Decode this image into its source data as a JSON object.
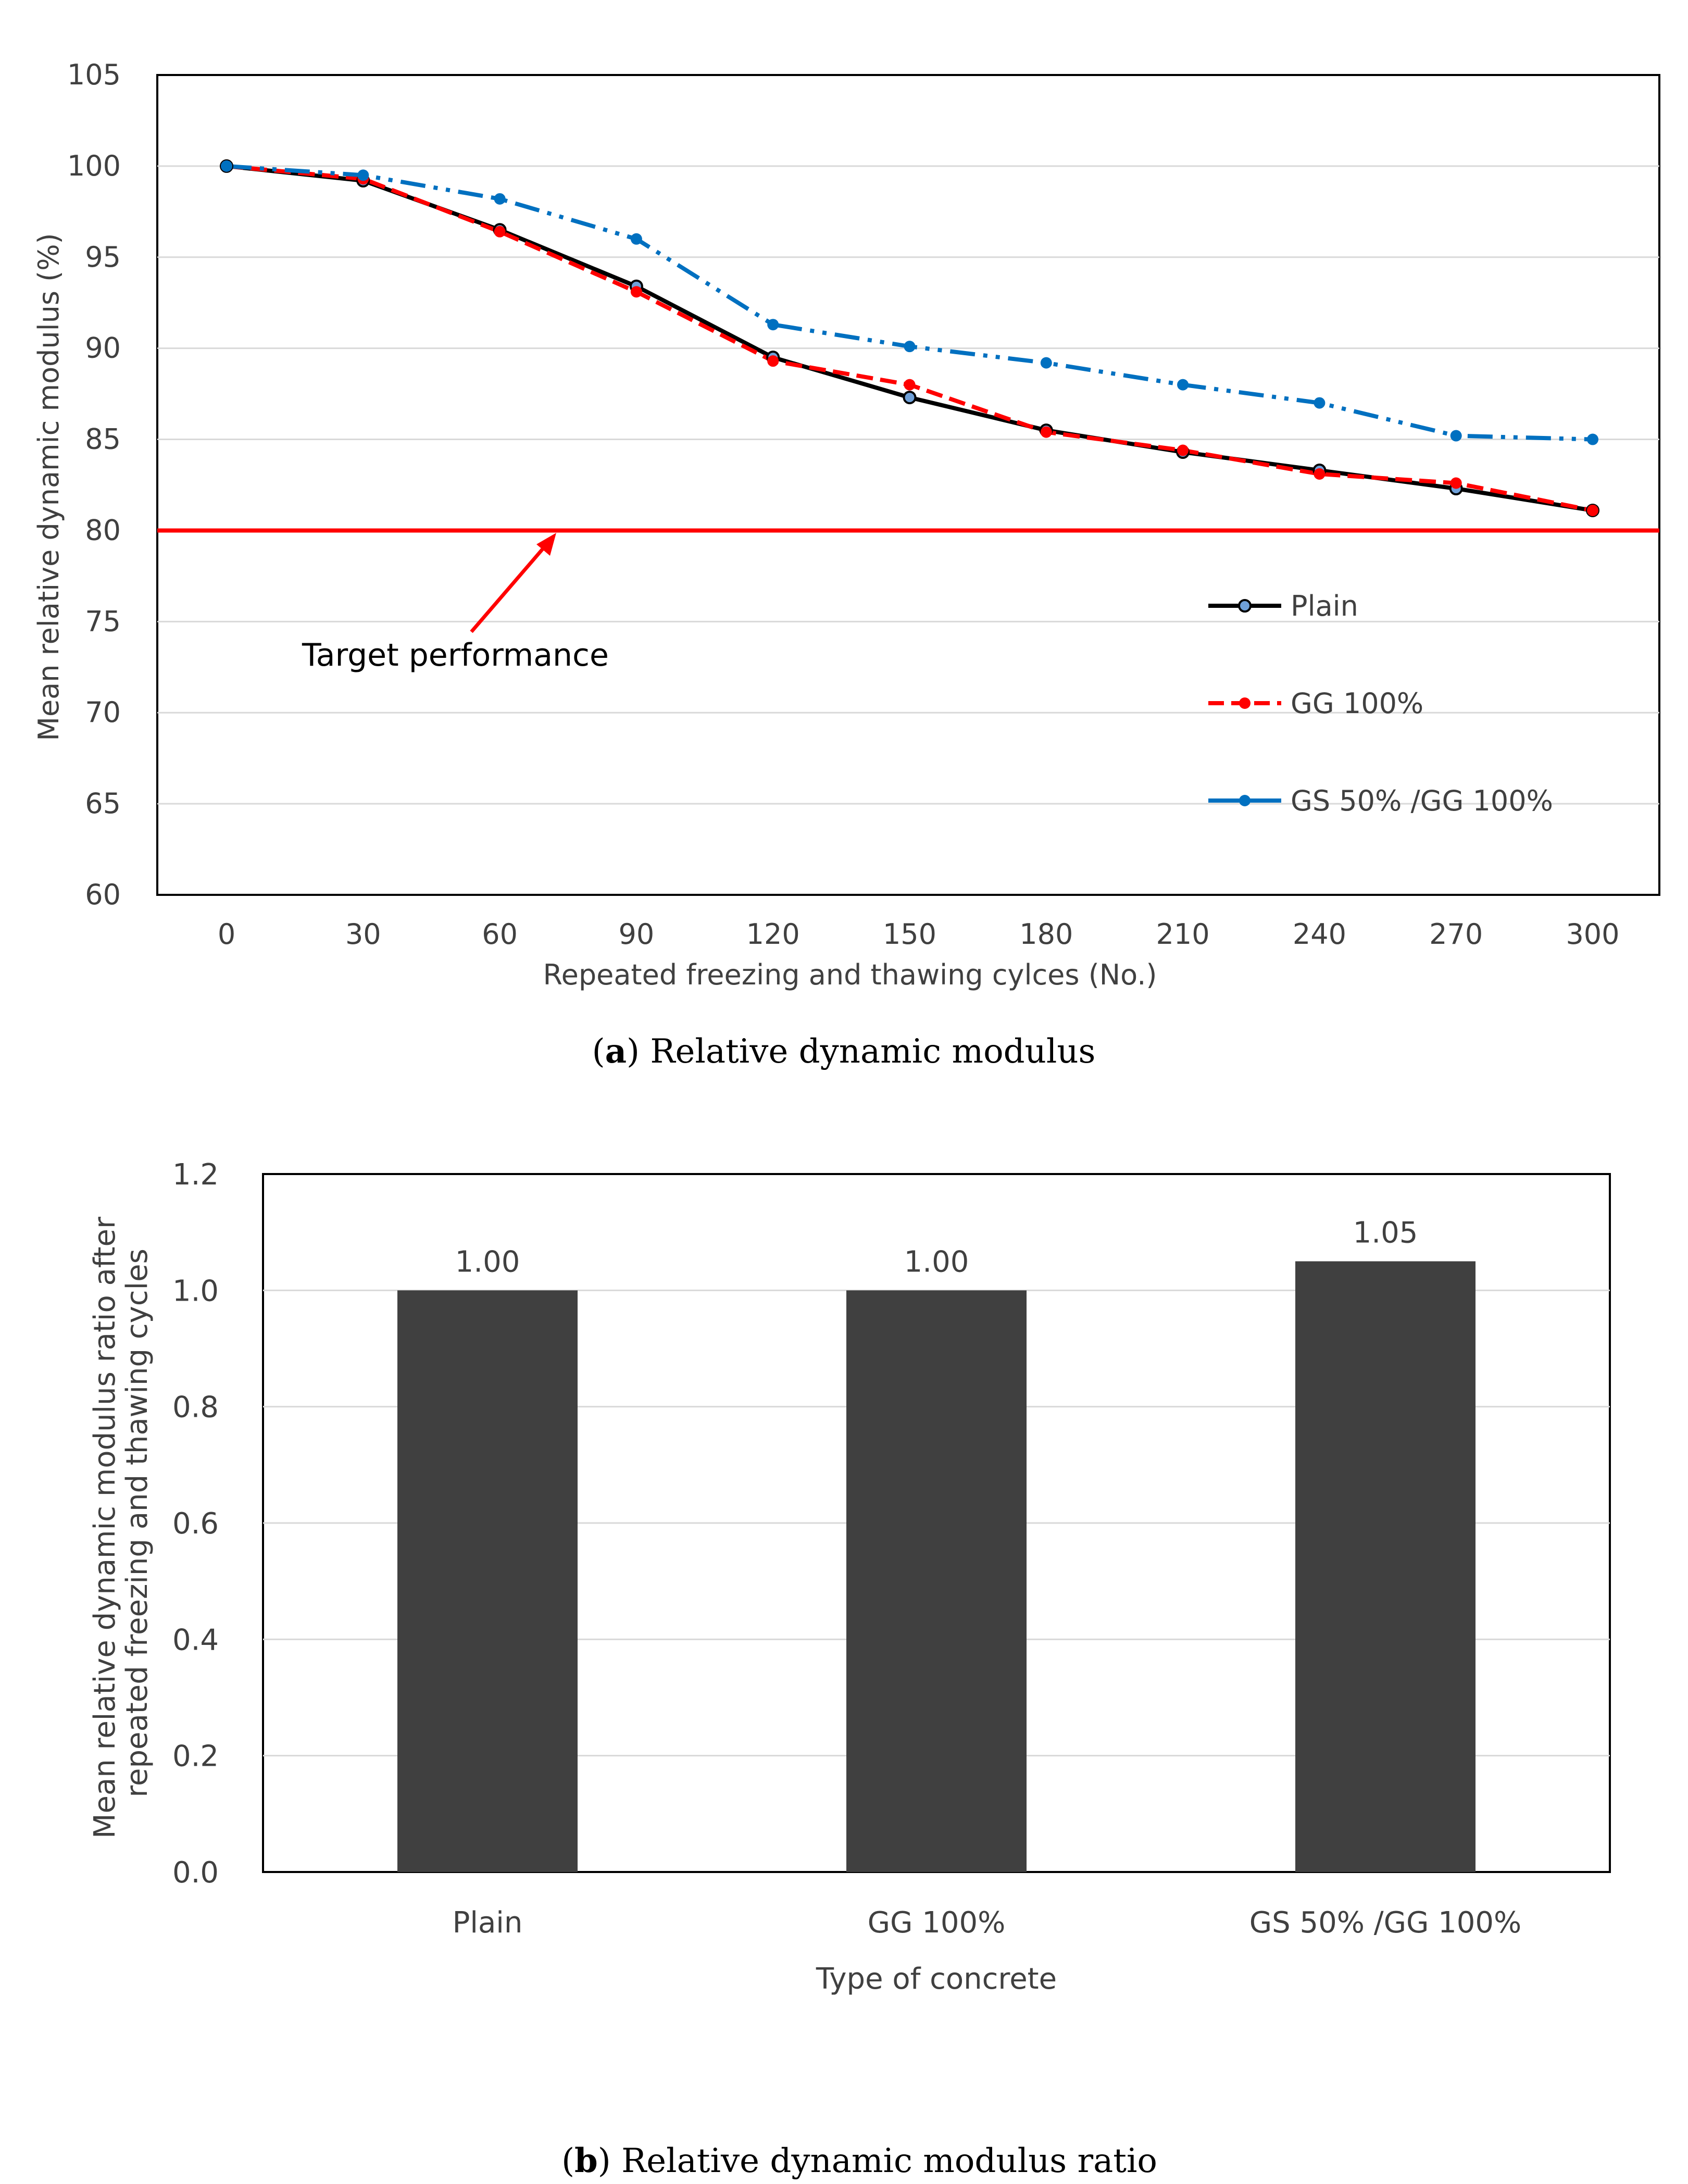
{
  "chart_data": [
    {
      "type": "line",
      "title": "",
      "xlabel": "Repeated freezing and  thawing cylces (No.)",
      "ylabel": "Mean relative dynamic modulus (%)",
      "x": [
        0,
        30,
        60,
        90,
        120,
        150,
        180,
        210,
        240,
        270,
        300
      ],
      "x_tick_labels": [
        "0",
        "30",
        "60",
        "90",
        "120",
        "150",
        "180",
        "210",
        "240",
        "270",
        "300"
      ],
      "ylim": [
        60,
        105
      ],
      "y_ticks": [
        60,
        65,
        70,
        75,
        80,
        85,
        90,
        95,
        100,
        105
      ],
      "series": [
        {
          "name": "Plain",
          "color": "#000000",
          "marker_color": "#6fa0d8",
          "dash": "solid",
          "values": [
            100,
            99.2,
            96.5,
            93.4,
            89.5,
            87.3,
            85.5,
            84.3,
            83.3,
            82.3,
            81.1
          ]
        },
        {
          "name": "GG 100%",
          "color": "#ff0000",
          "marker_color": "#ff0000",
          "dash": "dashed",
          "values": [
            100,
            99.3,
            96.4,
            93.1,
            89.3,
            88.0,
            85.4,
            84.4,
            83.1,
            82.6,
            81.1
          ]
        },
        {
          "name": "GS 50% /GG 100%",
          "color": "#0070c0",
          "marker_color": "#0070c0",
          "dash": "dash-dot-dot",
          "values": [
            100,
            99.5,
            98.2,
            96.0,
            91.3,
            90.1,
            89.2,
            88.0,
            87.0,
            85.2,
            85.0
          ]
        }
      ],
      "reference_line": {
        "value": 80,
        "color": "#ff0000"
      },
      "annotation": "Target performance",
      "legend_position": "bottom-right",
      "grid": true,
      "caption_letter": "a",
      "caption_text": " Relative dynamic modulus"
    },
    {
      "type": "bar",
      "title": "",
      "xlabel": "Type of concrete",
      "ylabel_line1": "Mean relative dynamic modulus ratio after",
      "ylabel_line2": "repeated freezing and thawing cycles",
      "categories": [
        "Plain",
        "GG 100%",
        "GS 50% /GG 100%"
      ],
      "values": [
        1.0,
        1.0,
        1.05
      ],
      "data_labels": [
        "1.00",
        "1.00",
        "1.05"
      ],
      "y_tick_labels": [
        "0.0",
        "0.2",
        "0.4",
        "0.6",
        "0.8",
        "1.0",
        "1.2"
      ],
      "ylim": [
        0,
        1.2
      ],
      "bar_color": "#404040",
      "grid": true,
      "caption_letter": "b",
      "caption_text": " Relative dynamic modulus ratio"
    }
  ]
}
